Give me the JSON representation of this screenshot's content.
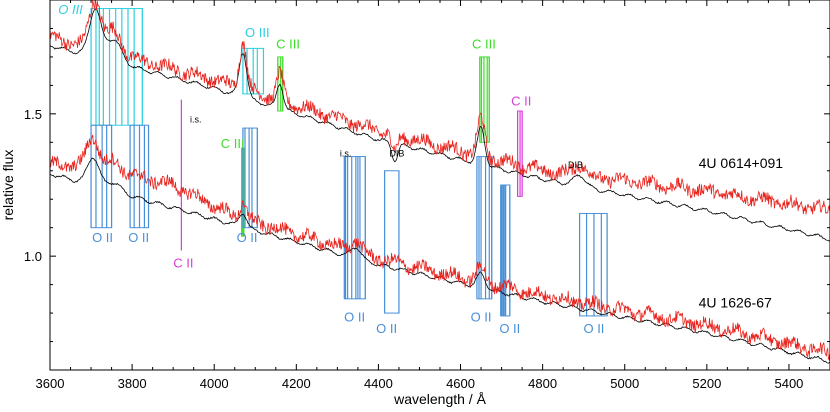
{
  "chart_data": {
    "type": "line",
    "xlabel": "wavelength / Å",
    "ylabel": "relative flux",
    "xlim": [
      3600,
      5500
    ],
    "ylim": [
      0.6,
      1.9
    ],
    "xticks": [
      3600,
      3800,
      4000,
      4200,
      4400,
      4600,
      4800,
      5000,
      5200,
      5400
    ],
    "yticks": [
      1.0,
      1.5
    ],
    "ytick_labels": [
      "1.0",
      "1.5"
    ],
    "grid": false,
    "series": [
      {
        "name": "4U 0614+091",
        "label_at": [
          5180,
          1.31
        ],
        "color_observed": "#e8221c",
        "color_model": "#000000",
        "continuum": [
          [
            3600,
            1.77
          ],
          [
            4000,
            1.62
          ],
          [
            4400,
            1.44
          ],
          [
            4800,
            1.3
          ],
          [
            5200,
            1.19
          ],
          [
            5500,
            1.09
          ]
        ],
        "observed_offset": [
          [
            3600,
            0.0
          ],
          [
            4800,
            0.0
          ],
          [
            5100,
            0.03
          ],
          [
            5500,
            0.07
          ]
        ],
        "features": [
          {
            "x": 3710,
            "depth": 0.17,
            "w": 14
          },
          {
            "x": 3755,
            "depth": 0.08,
            "w": 18
          },
          {
            "x": 4070,
            "depth": 0.16,
            "w": 9
          },
          {
            "x": 4160,
            "depth": 0.09,
            "w": 8
          },
          {
            "x": 4650,
            "depth": 0.13,
            "w": 9
          },
          {
            "x": 4440,
            "depth": -0.06,
            "w": 7
          },
          {
            "x": 4890,
            "depth": 0.04,
            "w": 14
          }
        ]
      },
      {
        "name": "4U 1626-67",
        "label_at": [
          5180,
          0.82
        ],
        "color_observed": "#e8221c",
        "color_model": "#000000",
        "continuum": [
          [
            3600,
            1.32
          ],
          [
            4000,
            1.16
          ],
          [
            4400,
            1.0
          ],
          [
            4800,
            0.87
          ],
          [
            5200,
            0.76
          ],
          [
            5500,
            0.66
          ]
        ],
        "observed_offset": [
          [
            3600,
            0.0
          ],
          [
            3700,
            0.04
          ],
          [
            3900,
            0.05
          ],
          [
            4050,
            0.0
          ],
          [
            4500,
            -0.01
          ],
          [
            5500,
            0.0
          ]
        ],
        "features": [
          {
            "x": 3705,
            "depth": 0.1,
            "w": 14
          },
          {
            "x": 3755,
            "depth": 0.03,
            "w": 18
          },
          {
            "x": 4070,
            "depth": 0.05,
            "w": 9
          },
          {
            "x": 4345,
            "depth": 0.04,
            "w": 12
          },
          {
            "x": 4650,
            "depth": 0.05,
            "w": 10
          }
        ]
      }
    ],
    "line_markers": [
      {
        "label": "O III",
        "color": "#2ecfe0",
        "label_at": [
          3650,
          1.85
        ],
        "label_style": "italic",
        "box": [
          1.46,
          1.87
        ],
        "x": [
          3700,
          3712,
          3720,
          3730,
          3745,
          3760,
          3775,
          3790,
          3805,
          3825
        ]
      },
      {
        "label": "O III",
        "color": "#2ecfe0",
        "label_at": [
          4105,
          1.77
        ],
        "label_style": "normal",
        "box": [
          1.57,
          1.73
        ],
        "x": [
          4070,
          4080,
          4095,
          4105,
          4120
        ]
      },
      {
        "label": "C III",
        "color": "#3ddc2a",
        "label_at": [
          4180,
          1.73
        ],
        "label_style": "normal",
        "box": [
          1.51,
          1.7
        ],
        "x": [
          4155,
          4162,
          4167
        ]
      },
      {
        "label": "C III",
        "color": "#3ddc2a",
        "label_at": [
          4657,
          1.73
        ],
        "label_style": "normal",
        "box": [
          1.4,
          1.7
        ],
        "x": [
          4647,
          4651,
          4657,
          4665,
          4670
        ]
      },
      {
        "label": "C II",
        "color": "#d93dd9",
        "label_at": [
          4748,
          1.53
        ],
        "label_style": "normal",
        "box": [
          1.21,
          1.51
        ],
        "x": [
          4739,
          4745,
          4750
        ]
      },
      {
        "label": "C II",
        "color": "#d93dd9",
        "label_at": [
          3925,
          0.96
        ],
        "label_style": "normal",
        "box": [
          1.02,
          1.55
        ],
        "x": [
          3920
        ]
      },
      {
        "label": "C III",
        "color": "#3ddc2a",
        "label_at": [
          4045,
          1.38
        ],
        "label_style": "normal",
        "box": [
          1.07,
          1.38
        ],
        "x": [
          4067,
          4070,
          4072
        ]
      },
      {
        "label": "O II",
        "color": "#4a90d9",
        "label_at": [
          3728,
          1.05
        ],
        "label_style": "normal",
        "box": [
          1.1,
          1.46
        ],
        "x": [
          3700,
          3712,
          3727,
          3738,
          3750
        ]
      },
      {
        "label": "O II",
        "color": "#4a90d9",
        "label_at": [
          3816,
          1.05
        ],
        "label_style": "normal",
        "box": [
          1.1,
          1.46
        ],
        "x": [
          3795,
          3805,
          3818,
          3830,
          3840
        ]
      },
      {
        "label": "O II",
        "color": "#4a90d9",
        "label_at": [
          4080,
          1.05
        ],
        "label_style": "normal",
        "box": [
          1.1,
          1.45
        ],
        "x": [
          4070,
          4075,
          4085,
          4092,
          4105
        ]
      },
      {
        "label": "O II",
        "color": "#4a90d9",
        "label_at": [
          4342,
          0.77
        ],
        "label_style": "normal",
        "box": [
          0.85,
          1.35
        ],
        "x": [
          4317,
          4320,
          4325,
          4335,
          4345,
          4350,
          4355,
          4368
        ]
      },
      {
        "label": "O II",
        "color": "#4a90d9",
        "label_at": [
          4420,
          0.73
        ],
        "label_style": "normal",
        "box": [
          0.8,
          1.3
        ],
        "x": [
          4415,
          4450
        ]
      },
      {
        "label": "O II",
        "color": "#4a90d9",
        "label_at": [
          4650,
          0.77
        ],
        "label_style": "normal",
        "box": [
          0.85,
          1.35
        ],
        "x": [
          4640,
          4645,
          4650,
          4661,
          4670,
          4676
        ]
      },
      {
        "label": "O II",
        "color": "#4a90d9",
        "label_at": [
          4720,
          0.73
        ],
        "label_style": "normal",
        "box": [
          0.79,
          1.25
        ],
        "x": [
          4698,
          4700,
          4703,
          4705,
          4708,
          4710,
          4720
        ]
      },
      {
        "label": "O II",
        "color": "#4a90d9",
        "label_at": [
          4925,
          0.73
        ],
        "label_style": "normal",
        "box": [
          0.79,
          1.15
        ],
        "x": [
          4890,
          4907,
          4925,
          4943,
          4957
        ]
      }
    ],
    "annotations": [
      {
        "text": "i.s.",
        "x": 3955,
        "y": 1.47
      },
      {
        "text": "i.s.",
        "x": 4320,
        "y": 1.35
      },
      {
        "text": "DIB",
        "x": 4445,
        "y": 1.35
      },
      {
        "text": "DIB",
        "x": 4880,
        "y": 1.31
      }
    ]
  }
}
